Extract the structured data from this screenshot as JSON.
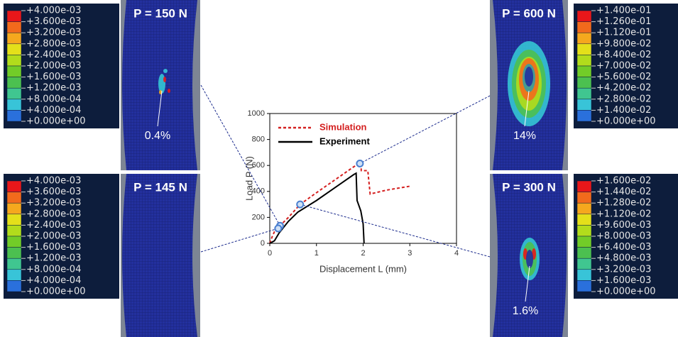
{
  "chart_data": {
    "type": "line",
    "xlabel": "Displacement L (mm)",
    "ylabel": "Load P (N)",
    "xlim": [
      0,
      4
    ],
    "ylim": [
      0,
      1000
    ],
    "xticks": [
      0,
      1,
      2,
      3,
      4
    ],
    "yticks": [
      0,
      200,
      400,
      600,
      800,
      1000
    ],
    "series": [
      {
        "name": "Simulation",
        "color": "#d42020",
        "dashed": true,
        "x": [
          0,
          0.05,
          0.1,
          0.2,
          0.4,
          0.65,
          1.0,
          1.4,
          1.8,
          1.95,
          1.96,
          2.1,
          2.15,
          2.5,
          3.0
        ],
        "values": [
          0,
          50,
          90,
          130,
          200,
          300,
          390,
          490,
          590,
          620,
          560,
          560,
          380,
          410,
          440
        ]
      },
      {
        "name": "Experiment",
        "color": "#000000",
        "dashed": false,
        "x": [
          0,
          0.1,
          0.2,
          0.4,
          0.6,
          1.0,
          1.4,
          1.8,
          1.85,
          1.87,
          1.95,
          2.0,
          2.02
        ],
        "values": [
          0,
          20,
          80,
          170,
          240,
          330,
          430,
          530,
          540,
          330,
          250,
          150,
          0
        ]
      }
    ],
    "markers": {
      "color": "#4a7fd0",
      "x": [
        0.22,
        0.18,
        1.93,
        0.65
      ],
      "values": [
        135,
        115,
        615,
        300
      ]
    }
  },
  "colormap": [
    "#e8171a",
    "#f26a1c",
    "#f5a81e",
    "#e4e01a",
    "#b2dc1c",
    "#72cc28",
    "#4cc050",
    "#40c690",
    "#38c4d8",
    "#2a70dc"
  ],
  "panels": [
    {
      "title": "P = 150 N",
      "annotation": "0.4%",
      "legend": [
        "+4.000e-03",
        "+3.600e-03",
        "+3.200e-03",
        "+2.800e-03",
        "+2.400e-03",
        "+2.000e-03",
        "+1.600e-03",
        "+1.200e-03",
        "+8.000e-04",
        "+4.000e-04",
        "+0.000e+00"
      ]
    },
    {
      "title": "P = 145 N",
      "legend": [
        "+4.000e-03",
        "+3.600e-03",
        "+3.200e-03",
        "+2.800e-03",
        "+2.400e-03",
        "+2.000e-03",
        "+1.600e-03",
        "+1.200e-03",
        "+8.000e-04",
        "+4.000e-04",
        "+0.000e+00"
      ]
    },
    {
      "title": "P = 600 N",
      "annotation": "14%",
      "legend": [
        "+1.400e-01",
        "+1.260e-01",
        "+1.120e-01",
        "+9.800e-02",
        "+8.400e-02",
        "+7.000e-02",
        "+5.600e-02",
        "+4.200e-02",
        "+2.800e-02",
        "+1.400e-02",
        "+0.000e+00"
      ]
    },
    {
      "title": "P = 300 N",
      "annotation": "1.6%",
      "legend": [
        "+1.600e-02",
        "+1.440e-02",
        "+1.280e-02",
        "+1.120e-02",
        "+9.600e-03",
        "+8.000e-03",
        "+6.400e-03",
        "+4.800e-03",
        "+3.200e-03",
        "+1.600e-03",
        "+0.000e+00"
      ]
    }
  ]
}
